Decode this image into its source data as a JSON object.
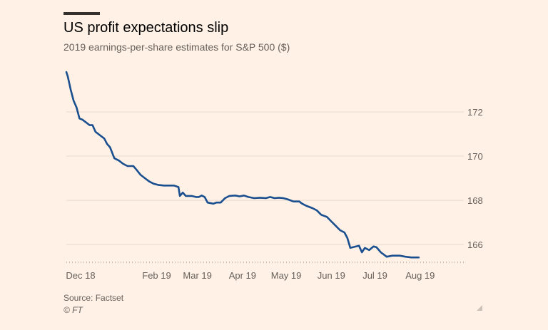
{
  "header": {
    "title": "US profit expectations slip",
    "subtitle": "2019 earnings-per-share estimates for S&P 500 ($)"
  },
  "footer": {
    "source": "Source: Factset",
    "copyright": "© FT"
  },
  "colors": {
    "background": "#fff1e5",
    "line": "#1a4f8f",
    "grid": "#e6d9ce",
    "text": "#33302e",
    "muted": "#66605c"
  },
  "chart_data": {
    "type": "line",
    "title": "US profit expectations slip",
    "subtitle": "2019 earnings-per-share estimates for S&P 500 ($)",
    "xlabel": "",
    "ylabel": "",
    "x_start": "2018-12-01",
    "x_end": "2019-08-31",
    "ylim": [
      165.2,
      173.9
    ],
    "yticks": [
      166,
      168,
      170,
      172
    ],
    "ytick_labels": [
      "166",
      "168",
      "170",
      "172"
    ],
    "xtick_labels": [
      {
        "label": "Dec 18",
        "date": "2018-12-01"
      },
      {
        "label": "Feb 19",
        "date": "2019-02-01"
      },
      {
        "label": "Mar 19",
        "date": "2019-03-01"
      },
      {
        "label": "Apr 19",
        "date": "2019-04-01"
      },
      {
        "label": "May 19",
        "date": "2019-05-01"
      },
      {
        "label": "Jun 19",
        "date": "2019-06-01"
      },
      {
        "label": "Jul 19",
        "date": "2019-07-01"
      },
      {
        "label": "Aug 19",
        "date": "2019-08-01"
      }
    ],
    "grid": true,
    "series": [
      {
        "name": "2019 EPS estimate",
        "points": [
          [
            "2018-12-01",
            173.8
          ],
          [
            "2018-12-02",
            173.6
          ],
          [
            "2018-12-04",
            173.0
          ],
          [
            "2018-12-06",
            172.5
          ],
          [
            "2018-12-08",
            172.2
          ],
          [
            "2018-12-10",
            171.7
          ],
          [
            "2018-12-12",
            171.65
          ],
          [
            "2018-12-15",
            171.5
          ],
          [
            "2018-12-17",
            171.4
          ],
          [
            "2018-12-19",
            171.4
          ],
          [
            "2018-12-21",
            171.1
          ],
          [
            "2018-12-24",
            170.95
          ],
          [
            "2018-12-27",
            170.8
          ],
          [
            "2018-12-29",
            170.55
          ],
          [
            "2018-12-31",
            170.4
          ],
          [
            "2019-01-03",
            169.9
          ],
          [
            "2019-01-06",
            169.8
          ],
          [
            "2019-01-09",
            169.65
          ],
          [
            "2019-01-12",
            169.55
          ],
          [
            "2019-01-16",
            169.55
          ],
          [
            "2019-01-18",
            169.4
          ],
          [
            "2019-01-21",
            169.15
          ],
          [
            "2019-01-24",
            169.0
          ],
          [
            "2019-01-27",
            168.85
          ],
          [
            "2019-01-30",
            168.75
          ],
          [
            "2019-02-02",
            168.7
          ],
          [
            "2019-02-06",
            168.67
          ],
          [
            "2019-02-10",
            168.67
          ],
          [
            "2019-02-13",
            168.67
          ],
          [
            "2019-02-16",
            168.6
          ],
          [
            "2019-02-17",
            168.2
          ],
          [
            "2019-02-19",
            168.35
          ],
          [
            "2019-02-21",
            168.2
          ],
          [
            "2019-02-25",
            168.2
          ],
          [
            "2019-02-28",
            168.15
          ],
          [
            "2019-03-02",
            168.15
          ],
          [
            "2019-03-04",
            168.22
          ],
          [
            "2019-03-06",
            168.15
          ],
          [
            "2019-03-08",
            167.9
          ],
          [
            "2019-03-12",
            167.85
          ],
          [
            "2019-03-14",
            167.9
          ],
          [
            "2019-03-17",
            167.9
          ],
          [
            "2019-03-20",
            168.1
          ],
          [
            "2019-03-23",
            168.2
          ],
          [
            "2019-03-27",
            168.22
          ],
          [
            "2019-03-30",
            168.18
          ],
          [
            "2019-04-02",
            168.22
          ],
          [
            "2019-04-05",
            168.15
          ],
          [
            "2019-04-09",
            168.1
          ],
          [
            "2019-04-13",
            168.12
          ],
          [
            "2019-04-17",
            168.1
          ],
          [
            "2019-04-20",
            168.15
          ],
          [
            "2019-04-23",
            168.1
          ],
          [
            "2019-04-26",
            168.12
          ],
          [
            "2019-04-29",
            168.1
          ],
          [
            "2019-05-02",
            168.05
          ],
          [
            "2019-05-06",
            167.95
          ],
          [
            "2019-05-10",
            167.95
          ],
          [
            "2019-05-12",
            167.85
          ],
          [
            "2019-05-15",
            167.75
          ],
          [
            "2019-05-19",
            167.65
          ],
          [
            "2019-05-22",
            167.55
          ],
          [
            "2019-05-25",
            167.35
          ],
          [
            "2019-05-29",
            167.25
          ],
          [
            "2019-06-01",
            167.05
          ],
          [
            "2019-06-04",
            166.85
          ],
          [
            "2019-06-07",
            166.65
          ],
          [
            "2019-06-10",
            166.55
          ],
          [
            "2019-06-12",
            166.3
          ],
          [
            "2019-06-14",
            165.85
          ],
          [
            "2019-06-17",
            165.9
          ],
          [
            "2019-06-20",
            165.95
          ],
          [
            "2019-06-22",
            165.65
          ],
          [
            "2019-06-24",
            165.85
          ],
          [
            "2019-06-27",
            165.75
          ],
          [
            "2019-06-30",
            165.92
          ],
          [
            "2019-07-02",
            165.88
          ],
          [
            "2019-07-05",
            165.65
          ],
          [
            "2019-07-09",
            165.45
          ],
          [
            "2019-07-13",
            165.5
          ],
          [
            "2019-07-18",
            165.5
          ],
          [
            "2019-07-22",
            165.45
          ],
          [
            "2019-07-26",
            165.42
          ],
          [
            "2019-07-31",
            165.42
          ]
        ]
      }
    ]
  }
}
